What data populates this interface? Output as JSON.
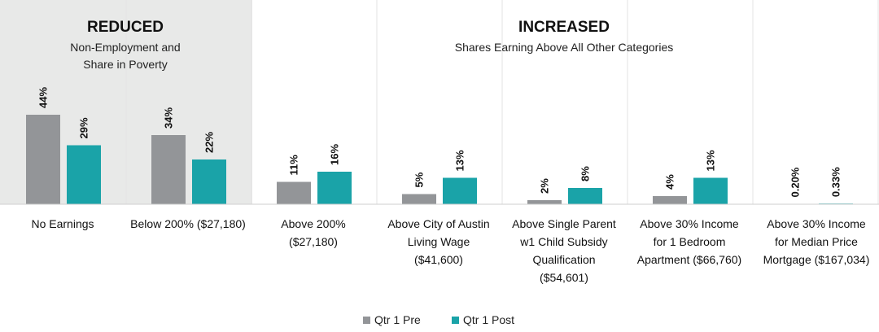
{
  "chart_data": {
    "type": "bar",
    "categories": [
      "No Earnings",
      "Below 200% ($27,180)",
      "Above 200% ($27,180)",
      "Above City of Austin Living Wage ($41,600)",
      "Above Single Parent w1 Child Subsidy Qualification ($54,601)",
      "Above 30% Income for 1 Bedroom Apartment ($66,760)",
      "Above 30% Income for Median Price Mortgage ($167,034)"
    ],
    "category_lines": [
      [
        "No Earnings"
      ],
      [
        "Below 200% ($27,180)"
      ],
      [
        "Above 200%",
        "($27,180)"
      ],
      [
        "Above City of Austin",
        "Living Wage",
        "($41,600)"
      ],
      [
        "Above Single Parent",
        "w1 Child Subsidy",
        "Qualification",
        "($54,601)"
      ],
      [
        "Above 30% Income",
        "for 1 Bedroom",
        "Apartment ($66,760)"
      ],
      [
        "Above 30% Income",
        "for Median Price",
        "Mortgage ($167,034)"
      ]
    ],
    "series": [
      {
        "name": "Qtr 1 Pre",
        "color": "#939598",
        "values": [
          44,
          34,
          11,
          5,
          2,
          4,
          0.2
        ],
        "labels": [
          "44%",
          "34%",
          "11%",
          "5%",
          "2%",
          "4%",
          "0.20%"
        ]
      },
      {
        "name": "Qtr 1 Post",
        "color": "#1aa3a8",
        "values": [
          29,
          22,
          16,
          13,
          8,
          13,
          0.33
        ],
        "labels": [
          "29%",
          "22%",
          "16%",
          "13%",
          "8%",
          "13%",
          "0.33%"
        ]
      }
    ],
    "groups": [
      {
        "title": "REDUCED",
        "subtitle_lines": [
          "Non-Employment and",
          "Share in Poverty"
        ],
        "category_range": [
          0,
          1
        ],
        "shaded": true,
        "shade_color": "#e8e9e8"
      },
      {
        "title": "INCREASED",
        "subtitle_lines": [
          "Shares Earning Above All Other Categories"
        ],
        "category_range": [
          2,
          6
        ],
        "shaded": false
      }
    ],
    "ylim": [
      0,
      60
    ],
    "grid": false,
    "legend_position": "bottom-center"
  }
}
